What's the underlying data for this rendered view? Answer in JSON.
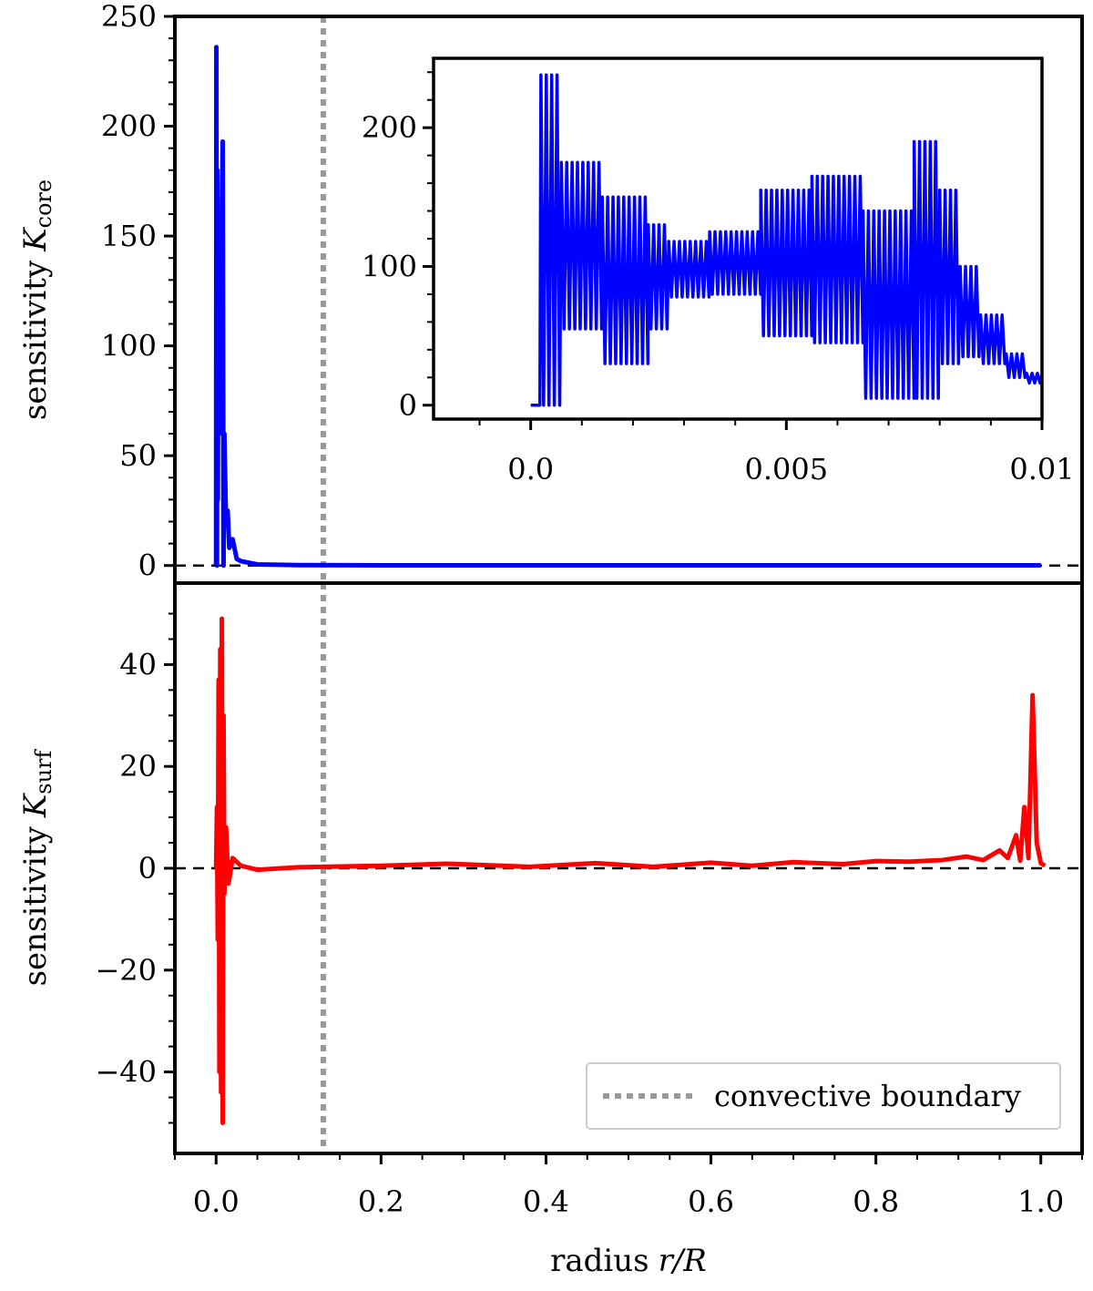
{
  "chart_data": [
    {
      "panel": "top",
      "type": "line",
      "ylabel": "sensitivity",
      "ylabel_symbol": "K",
      "ylabel_subscript": "core",
      "xlim": [
        -0.05,
        1.05
      ],
      "ylim": [
        -8,
        250
      ],
      "yticks": [
        0,
        50,
        100,
        150,
        200,
        250
      ],
      "ytick_labels": [
        "0",
        "50",
        "100",
        "150",
        "200",
        "250"
      ],
      "zero_line": true,
      "series": [
        {
          "name": "K_core",
          "color": "#0000ff",
          "x": [
            0.0,
            0.0003,
            0.001,
            0.0015,
            0.002,
            0.003,
            0.004,
            0.006,
            0.008,
            0.009,
            0.01,
            0.012,
            0.014,
            0.016,
            0.02,
            0.025,
            0.03,
            0.05,
            0.1,
            0.2,
            0.4,
            0.6,
            0.8,
            1.0
          ],
          "y": [
            0,
            236,
            0,
            180,
            30,
            150,
            60,
            120,
            193,
            0,
            60,
            20,
            25,
            8,
            12,
            3,
            2,
            0.5,
            0.2,
            0.1,
            0.1,
            0.1,
            0.1,
            0.1
          ]
        }
      ],
      "inset": {
        "xlim": [
          -0.0019,
          0.01
        ],
        "ylim": [
          -10,
          250
        ],
        "xticks": [
          0.0,
          0.005,
          0.01
        ],
        "xtick_labels": [
          "0.0",
          "0.005",
          "0.01"
        ],
        "yticks": [
          0,
          100,
          200
        ],
        "ytick_labels": [
          "0",
          "100",
          "200"
        ],
        "segments": [
          {
            "x0": 0.0,
            "x1": 0.00018,
            "hi": 0,
            "lo": 0
          },
          {
            "x0": 0.0002,
            "x1": 0.0006,
            "hi": 238,
            "lo": 0
          },
          {
            "x0": 0.0006,
            "x1": 0.0014,
            "hi": 175,
            "lo": 55
          },
          {
            "x0": 0.0014,
            "x1": 0.0023,
            "hi": 150,
            "lo": 30
          },
          {
            "x0": 0.0023,
            "x1": 0.0027,
            "hi": 130,
            "lo": 55
          },
          {
            "x0": 0.0027,
            "x1": 0.0035,
            "hi": 118,
            "lo": 78
          },
          {
            "x0": 0.0035,
            "x1": 0.0045,
            "hi": 125,
            "lo": 80
          },
          {
            "x0": 0.0045,
            "x1": 0.0055,
            "hi": 155,
            "lo": 50
          },
          {
            "x0": 0.0055,
            "x1": 0.0065,
            "hi": 165,
            "lo": 45
          },
          {
            "x0": 0.0065,
            "x1": 0.0075,
            "hi": 140,
            "lo": 5
          },
          {
            "x0": 0.0075,
            "x1": 0.008,
            "hi": 190,
            "lo": 5
          },
          {
            "x0": 0.008,
            "x1": 0.0084,
            "hi": 155,
            "lo": 30
          },
          {
            "x0": 0.0084,
            "x1": 0.0088,
            "hi": 100,
            "lo": 35
          },
          {
            "x0": 0.0088,
            "x1": 0.0093,
            "hi": 65,
            "lo": 30
          },
          {
            "x0": 0.0093,
            "x1": 0.0097,
            "hi": 37,
            "lo": 20
          },
          {
            "x0": 0.0097,
            "x1": 0.01,
            "hi": 23,
            "lo": 16
          }
        ]
      }
    },
    {
      "panel": "bottom",
      "type": "line",
      "ylabel": "sensitivity",
      "ylabel_symbol": "K",
      "ylabel_subscript": "surf",
      "xlabel": "radius",
      "xlabel_symbol": "r/R",
      "xlim": [
        -0.05,
        1.05
      ],
      "ylim": [
        -56,
        56
      ],
      "yticks": [
        -40,
        -20,
        0,
        20,
        40
      ],
      "ytick_labels": [
        "−40",
        "−20",
        "0",
        "20",
        "40"
      ],
      "xticks": [
        0.0,
        0.2,
        0.4,
        0.6,
        0.8,
        1.0
      ],
      "xtick_labels": [
        "0.0",
        "0.2",
        "0.4",
        "0.6",
        "0.8",
        "1.0"
      ],
      "zero_line": true,
      "series": [
        {
          "name": "K_surf",
          "color": "#ff0000",
          "x": [
            0.0,
            0.001,
            0.002,
            0.003,
            0.004,
            0.005,
            0.006,
            0.007,
            0.008,
            0.009,
            0.01,
            0.012,
            0.015,
            0.02,
            0.03,
            0.05,
            0.1,
            0.2,
            0.28,
            0.38,
            0.46,
            0.53,
            0.6,
            0.65,
            0.7,
            0.76,
            0.8,
            0.84,
            0.88,
            0.91,
            0.93,
            0.95,
            0.96,
            0.97,
            0.975,
            0.98,
            0.985,
            0.99,
            0.995,
            1.0,
            1.005
          ],
          "y": [
            0,
            12,
            -14,
            37,
            -40,
            43,
            -44,
            49,
            -50,
            30,
            -5,
            8,
            -3,
            2,
            0.5,
            -0.3,
            0.2,
            0.5,
            0.9,
            0.3,
            1.0,
            0.3,
            1.1,
            0.5,
            1.2,
            0.8,
            1.4,
            1.3,
            1.6,
            2.3,
            1.6,
            3.5,
            2.0,
            6.5,
            1.5,
            12.0,
            2.0,
            34.0,
            5.0,
            1.0,
            0.5
          ]
        }
      ]
    }
  ],
  "convective_boundary": {
    "x": 0.13,
    "color": "#999999",
    "legend_label": "convective boundary",
    "legend_placement": "bottom-right"
  }
}
